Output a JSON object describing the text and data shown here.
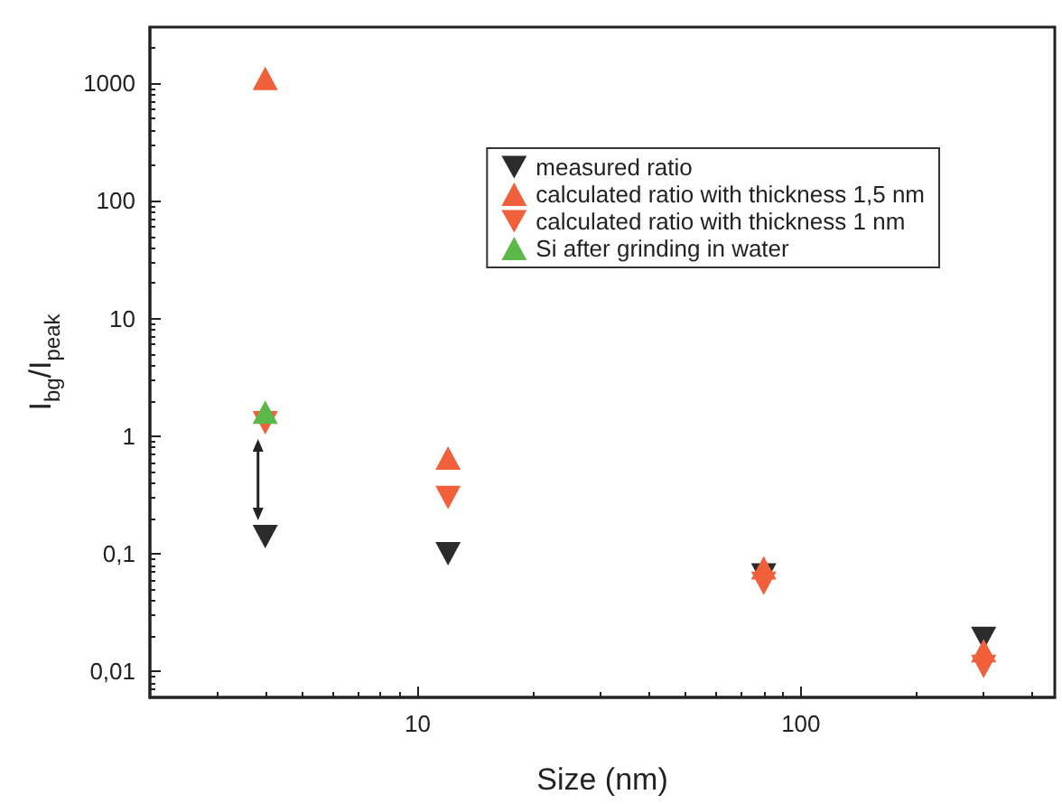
{
  "chart_data": {
    "type": "scatter",
    "xlabel": "Size (nm)",
    "ylabel": "I$_{bg}$/I$_{peak}$",
    "log": "xy",
    "xlim": [
      2,
      460
    ],
    "xticks": [
      10,
      100
    ],
    "ylim": [
      0.006,
      3000
    ],
    "yticks": [
      {
        "value": 0.01,
        "label": "0,01"
      },
      {
        "value": 0.1,
        "label": "0,1"
      },
      1,
      10,
      100,
      1000
    ],
    "grid": false,
    "legend": "top right",
    "series": [
      {
        "name": "measured ratio",
        "color": "#2b2b2b",
        "marker": "triangle-down",
        "x": [
          4,
          12,
          80,
          300
        ],
        "values": [
          0.14,
          0.1,
          0.066,
          0.019
        ]
      },
      {
        "name": "calculated ratio with thickness 1,5 nm",
        "color": "#f0603a",
        "marker": "triangle",
        "x": [
          4,
          12,
          80,
          300
        ],
        "values": [
          1100,
          0.65,
          0.076,
          0.015
        ]
      },
      {
        "name": "calculated ratio with thickness 1 nm",
        "color": "#f0603a",
        "marker": "triangle-down",
        "x": [
          4,
          12,
          80,
          300
        ],
        "values": [
          1.3,
          0.3,
          0.056,
          0.011
        ]
      },
      {
        "name": "Si after grinding in water",
        "color": "#5cb848",
        "marker": "triangle",
        "x": [
          4
        ],
        "values": [
          1.6
        ]
      }
    ]
  }
}
